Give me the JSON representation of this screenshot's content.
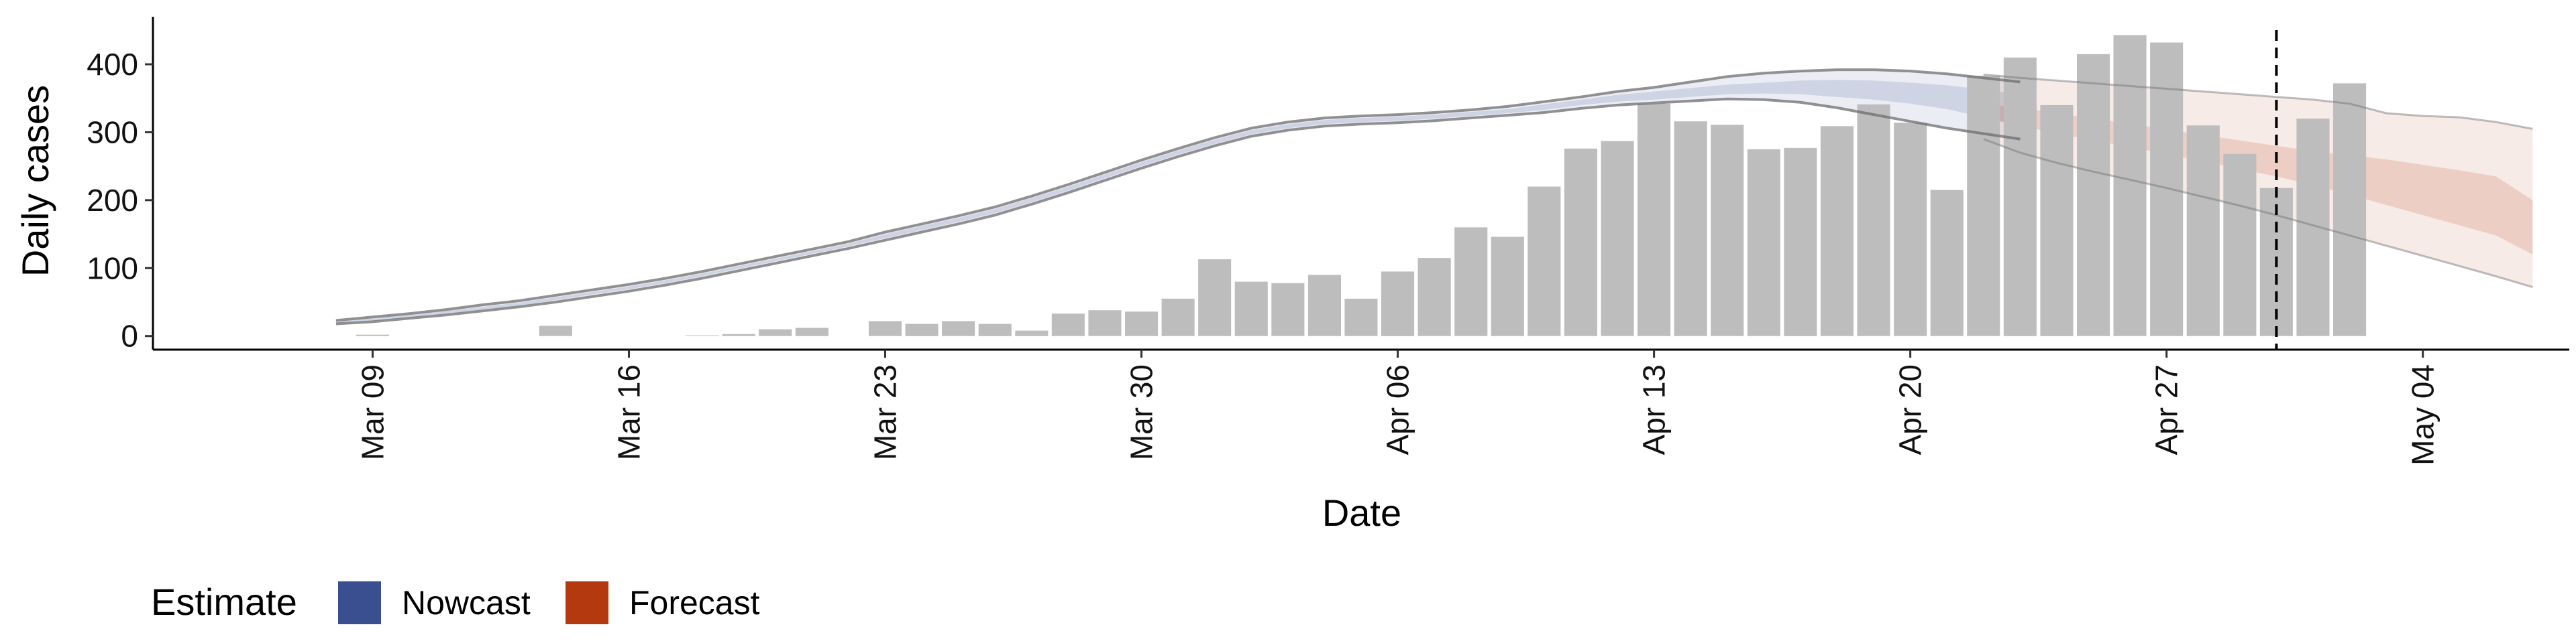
{
  "chart_data": {
    "type": "bar",
    "xlabel": "Date",
    "ylabel": "Daily cases",
    "x_axis": {
      "type": "date",
      "range": [
        "2020-03-03",
        "2020-05-08"
      ],
      "ticks": [
        {
          "date": "2020-03-09",
          "label": "Mar 09"
        },
        {
          "date": "2020-03-16",
          "label": "Mar 16"
        },
        {
          "date": "2020-03-23",
          "label": "Mar 23"
        },
        {
          "date": "2020-03-30",
          "label": "Mar 30"
        },
        {
          "date": "2020-04-06",
          "label": "Apr 06"
        },
        {
          "date": "2020-04-13",
          "label": "Apr 13"
        },
        {
          "date": "2020-04-20",
          "label": "Apr 20"
        },
        {
          "date": "2020-04-27",
          "label": "Apr 27"
        },
        {
          "date": "2020-05-04",
          "label": "May 04"
        }
      ]
    },
    "y_axis": {
      "range": [
        -20,
        470
      ],
      "ticks": [
        0,
        100,
        200,
        300,
        400
      ]
    },
    "grid": false,
    "bar_color": "#bdbdbd",
    "reported_cases": {
      "start_date": "2020-03-08",
      "values": [
        0,
        2,
        0,
        0,
        0,
        0,
        15,
        0,
        0,
        0,
        1,
        3,
        10,
        12,
        0,
        22,
        18,
        22,
        18,
        8,
        33,
        38,
        36,
        55,
        113,
        80,
        78,
        90,
        55,
        95,
        115,
        160,
        146,
        220,
        276,
        287,
        342,
        316,
        311,
        275,
        277,
        309,
        341,
        314,
        215,
        383,
        410,
        340,
        415,
        443,
        432,
        310,
        268,
        218,
        320,
        372
      ]
    },
    "series": [
      {
        "name": "Nowcast",
        "color": "#3a4f8f",
        "start_date": "2020-03-08",
        "median": [
          20,
          24,
          29,
          35,
          41,
          47,
          55,
          63,
          71,
          80,
          90,
          101,
          112,
          123,
          134,
          147,
          159,
          171,
          184,
          200,
          217,
          235,
          253,
          270,
          286,
          300,
          309,
          315,
          318,
          320,
          323,
          327,
          331,
          337,
          344,
          350,
          354,
          358,
          363,
          365,
          366,
          365,
          363,
          358,
          352,
          343,
          334
        ],
        "inner": {
          "lower": [
            19,
            22,
            27,
            33,
            39,
            45,
            53,
            61,
            69,
            78,
            88,
            99,
            110,
            121,
            132,
            144,
            156,
            168,
            181,
            197,
            214,
            232,
            250,
            267,
            283,
            297,
            306,
            312,
            315,
            317,
            320,
            324,
            328,
            333,
            340,
            345,
            348,
            352,
            356,
            357,
            356,
            352,
            348,
            342,
            334,
            322,
            310
          ],
          "upper": [
            21,
            26,
            31,
            37,
            43,
            49,
            57,
            65,
            73,
            82,
            92,
            103,
            114,
            125,
            136,
            150,
            162,
            174,
            187,
            203,
            220,
            238,
            256,
            273,
            289,
            303,
            312,
            318,
            321,
            323,
            326,
            330,
            334,
            341,
            348,
            355,
            360,
            365,
            370,
            373,
            376,
            377,
            376,
            373,
            369,
            363,
            356
          ]
        },
        "outer": {
          "lower": [
            18,
            21,
            26,
            31,
            37,
            43,
            50,
            58,
            66,
            75,
            85,
            96,
            107,
            118,
            129,
            141,
            153,
            165,
            178,
            194,
            211,
            229,
            247,
            264,
            280,
            294,
            303,
            309,
            312,
            314,
            317,
            321,
            325,
            329,
            335,
            340,
            343,
            346,
            349,
            348,
            344,
            336,
            326,
            316,
            306,
            298,
            290
          ],
          "upper": [
            23,
            28,
            33,
            39,
            46,
            52,
            60,
            68,
            76,
            85,
            95,
            106,
            117,
            128,
            139,
            153,
            165,
            177,
            190,
            206,
            223,
            241,
            259,
            276,
            292,
            306,
            315,
            321,
            324,
            326,
            329,
            333,
            338,
            345,
            352,
            360,
            366,
            374,
            382,
            387,
            390,
            392,
            392,
            390,
            386,
            380,
            374
          ]
        }
      },
      {
        "name": "Forecast",
        "color": "#b5390f",
        "start_date": "2020-04-22",
        "median": [
          330,
          322,
          312,
          303,
          294,
          285,
          276,
          266,
          256,
          246,
          236,
          225,
          214,
          202,
          190,
          175
        ],
        "inner": {
          "lower": [
            320,
            310,
            298,
            288,
            278,
            268,
            257,
            246,
            235,
            222,
            208,
            193,
            178,
            163,
            148,
            120
          ],
          "upper": [
            342,
            336,
            328,
            320,
            312,
            304,
            296,
            288,
            280,
            272,
            266,
            260,
            252,
            244,
            235,
            200
          ]
        },
        "outer": {
          "lower": [
            290,
            270,
            255,
            242,
            230,
            218,
            205,
            192,
            178,
            163,
            148,
            133,
            118,
            103,
            88,
            72
          ],
          "upper": [
            385,
            380,
            376,
            372,
            368,
            364,
            360,
            356,
            352,
            348,
            342,
            328,
            324,
            322,
            315,
            305
          ]
        }
      }
    ],
    "vline": {
      "date": "2020-04-30",
      "style": "dashed"
    },
    "legend": {
      "title": "Estimate",
      "position": "bottom-left",
      "entries": [
        "Nowcast",
        "Forecast"
      ]
    }
  }
}
